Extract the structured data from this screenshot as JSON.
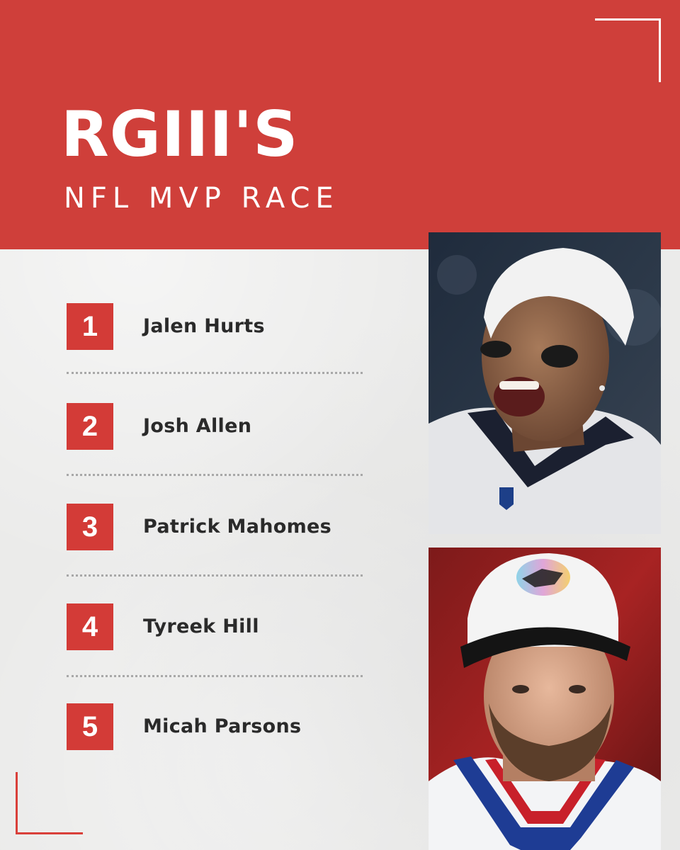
{
  "header": {
    "title": "RGIII'S",
    "subtitle": "NFL MVP RACE"
  },
  "list": {
    "items": [
      {
        "rank": "1",
        "name": "Jalen Hurts"
      },
      {
        "rank": "2",
        "name": "Josh Allen"
      },
      {
        "rank": "3",
        "name": "Patrick Mahomes"
      },
      {
        "rank": "4",
        "name": "Tyreek Hill"
      },
      {
        "rank": "5",
        "name": "Micah Parsons"
      }
    ]
  },
  "colors": {
    "accent_red": "#cf3f3a",
    "rank_box": "#d33b37",
    "background": "#ebebea",
    "text": "#2a2a2a"
  }
}
